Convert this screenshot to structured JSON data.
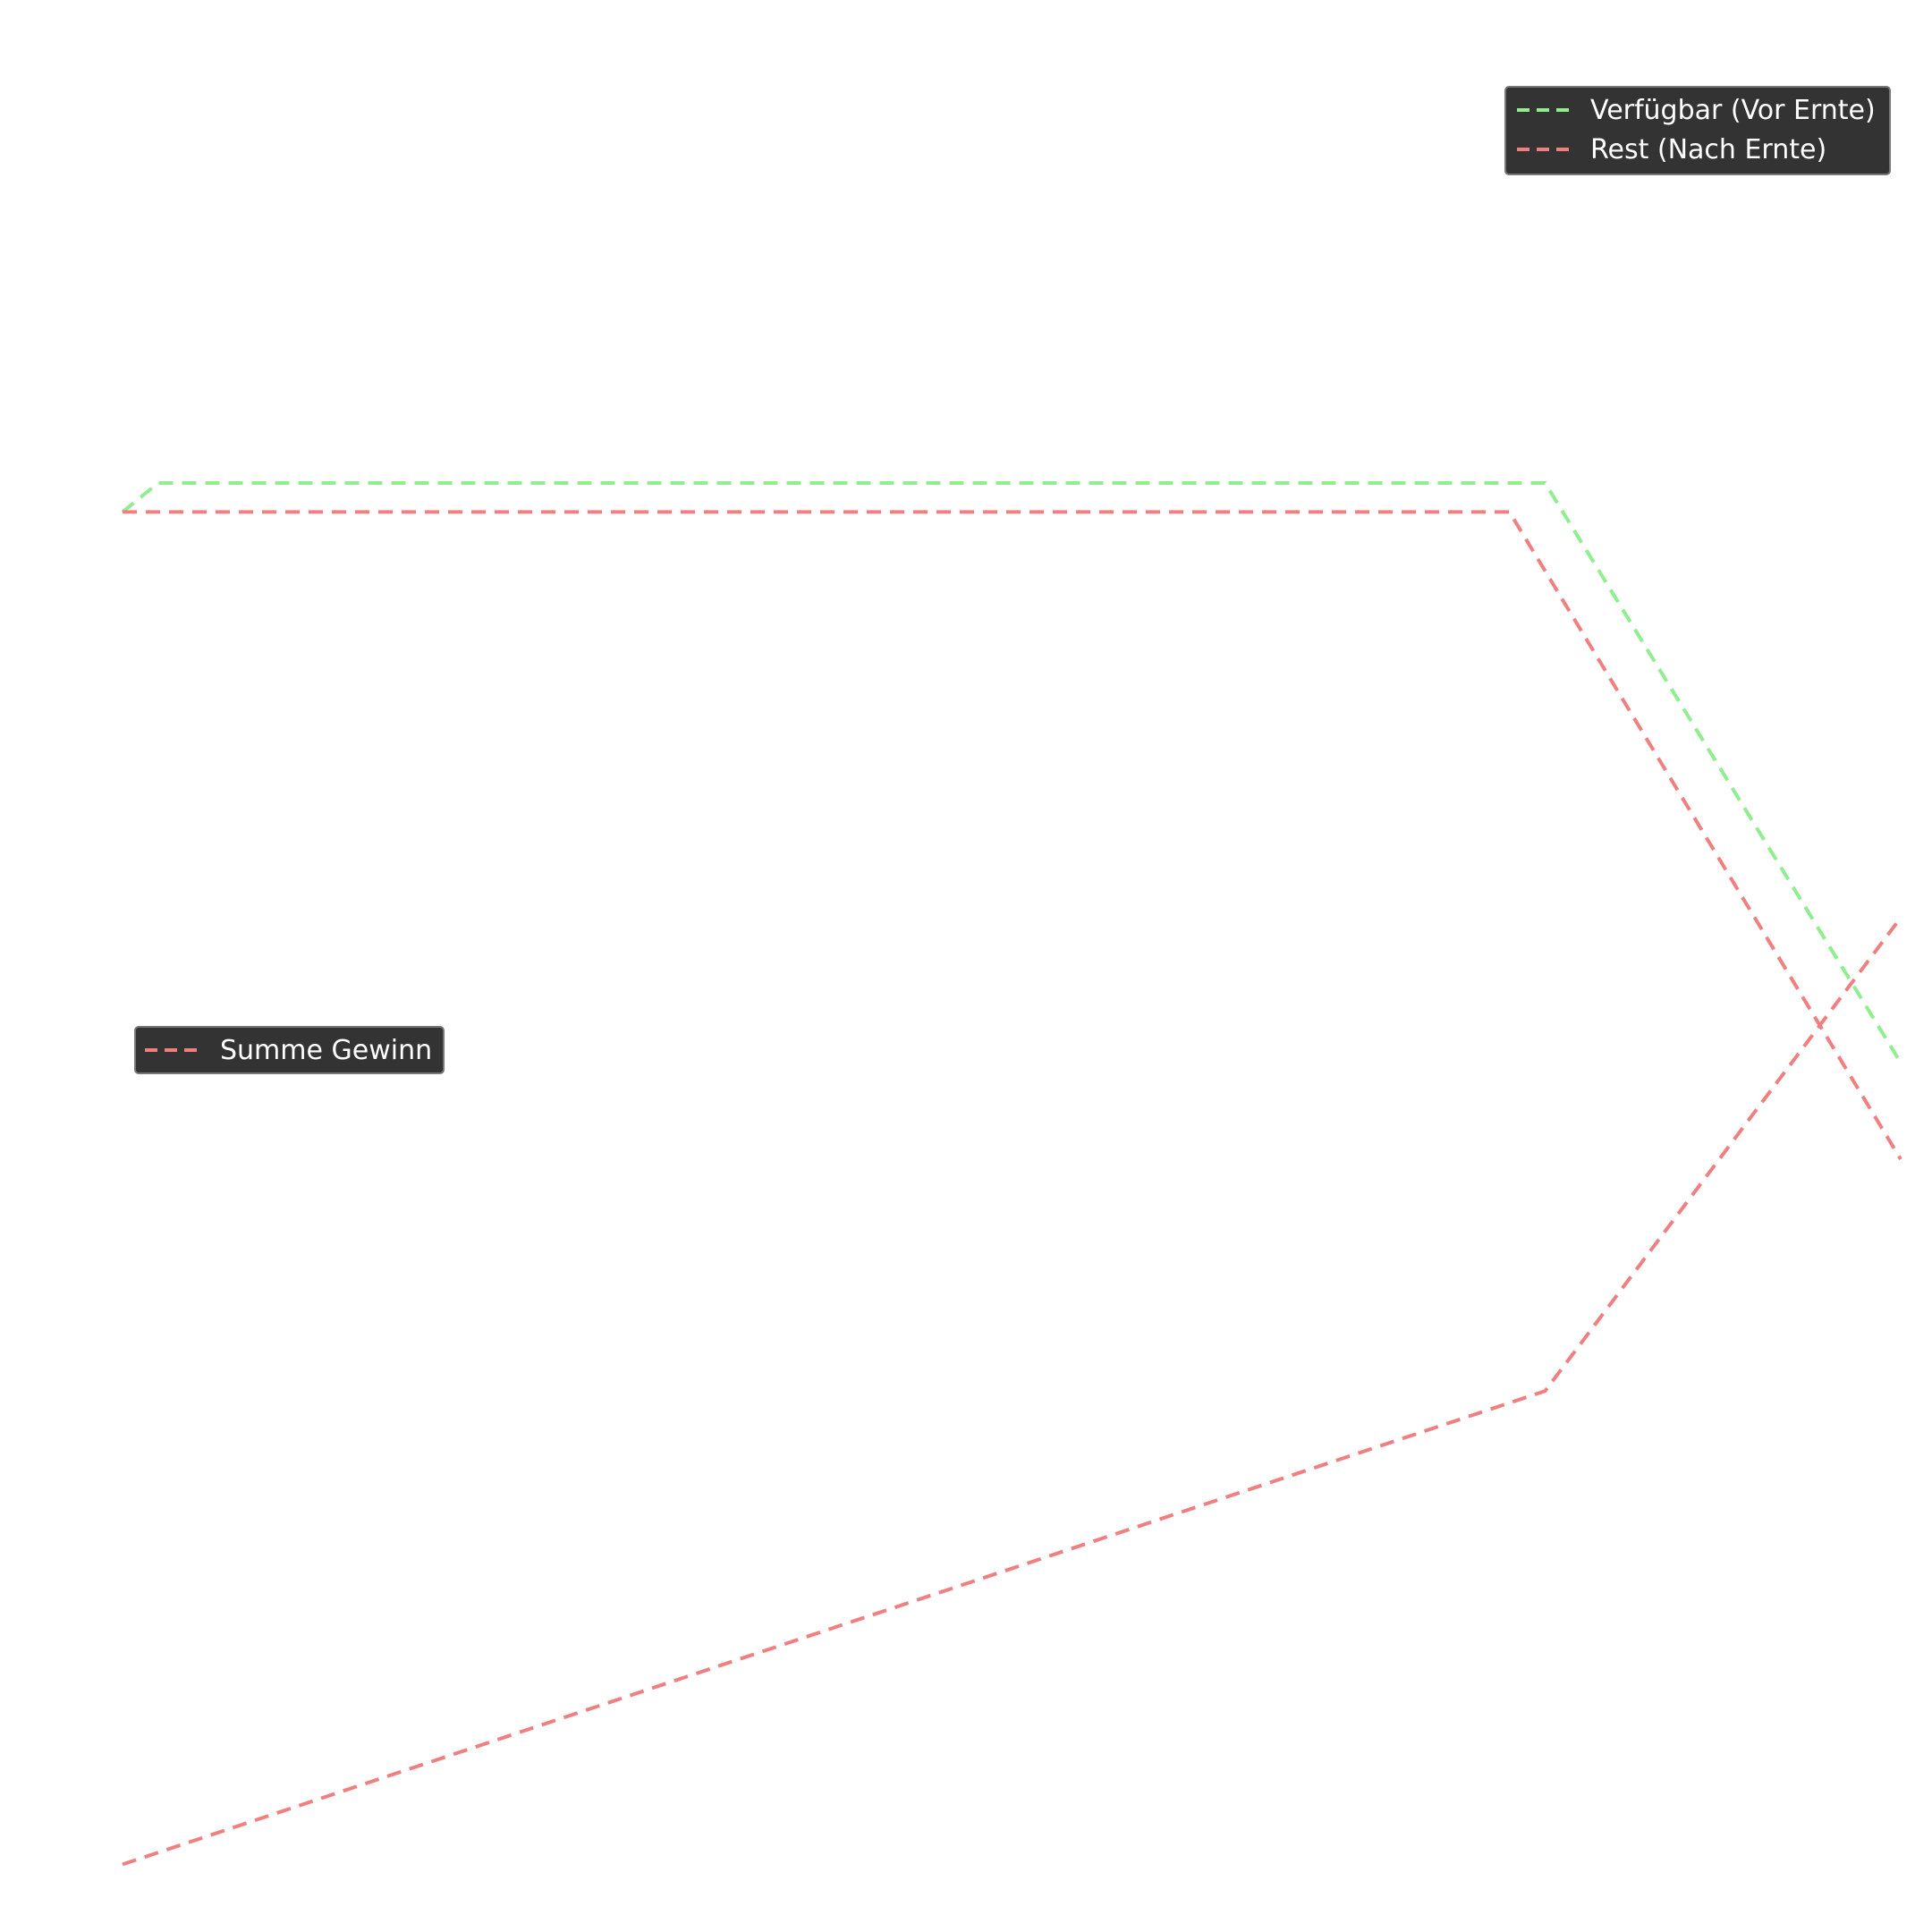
{
  "chart_data": [
    {
      "type": "line",
      "title": "",
      "xlabel": "",
      "ylabel": "",
      "grid": false,
      "legend_position": "upper-right",
      "x": [
        0,
        1,
        2,
        3,
        4,
        5
      ],
      "xlim": [
        0,
        5
      ],
      "ylim": [
        0,
        100
      ],
      "series": [
        {
          "name": "Verfügbar (Vor Ernte)",
          "color": "#90ee90",
          "style": "dashed",
          "x": [
            0,
            0.1,
            4.0,
            5.0
          ],
          "values": [
            73.5,
            75.0,
            75.0,
            45.0
          ]
        },
        {
          "name": "Rest (Nach Ernte)",
          "color": "#f08080",
          "style": "dashed",
          "x": [
            0,
            3.9,
            5.0
          ],
          "values": [
            73.5,
            73.5,
            40.0
          ]
        }
      ]
    },
    {
      "type": "line",
      "title": "",
      "xlabel": "",
      "ylabel": "",
      "grid": false,
      "legend_position": "center-left",
      "x": [
        0,
        1,
        2,
        3,
        4,
        5
      ],
      "xlim": [
        0,
        5
      ],
      "ylim": [
        0,
        100
      ],
      "series": [
        {
          "name": "Summe Gewinn",
          "color": "#f08080",
          "style": "dashed",
          "x": [
            0,
            4.0,
            5.0
          ],
          "values": [
            3.5,
            28.0,
            52.5
          ]
        }
      ]
    }
  ]
}
